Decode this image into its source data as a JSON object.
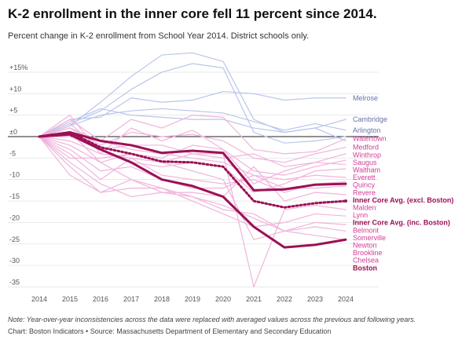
{
  "title": "K-2 enrollment in the inner core fell 11 percent since 2014.",
  "subtitle": "Percent change in K-2 enrollment from School Year 2014. District schools only.",
  "note": "Note: Year-over-year inconsistencies across the data were replaced with averaged values across the previous and following years.",
  "source": "Chart: Boston Indicators • Source: Massachusetts Department of Elementary and Secondary Education",
  "colors": {
    "blue_series": "#b9c6ea",
    "blue_label": "#6673a8",
    "pink_series": "#f0b4dc",
    "pink_label": "#d33c99",
    "highlight": "#9b1155",
    "zero_line": "#222222",
    "grid": "#e4e4e4"
  },
  "chart_data": {
    "type": "line",
    "title": "K-2 enrollment in the inner core fell 11 percent since 2014.",
    "subtitle": "Percent change in K-2 enrollment from School Year 2014. District schools only.",
    "x": [
      2014,
      2015,
      2016,
      2017,
      2018,
      2019,
      2020,
      2021,
      2022,
      2023,
      2024
    ],
    "x_tick_labels": [
      "2014",
      "2015",
      "2016",
      "2017",
      "2018",
      "2019",
      "2020",
      "2021",
      "2022",
      "2023",
      "2024"
    ],
    "ylim": [
      -35,
      17
    ],
    "y_ticks": [
      15,
      10,
      5,
      0,
      -5,
      -10,
      -15,
      -20,
      -25,
      -30,
      -35
    ],
    "y_tick_labels": [
      "+15%",
      "+10",
      "+5",
      "±0",
      "-5",
      "-10",
      "-15",
      "-20",
      "-25",
      "-30",
      "-35"
    ],
    "grid": true,
    "series": [
      {
        "name": "",
        "group": "blue",
        "values": [
          0,
          2.5,
          8,
          14,
          19,
          19.5,
          17.5,
          4,
          1,
          2,
          -1
        ]
      },
      {
        "name": "",
        "group": "blue",
        "values": [
          0,
          3,
          6,
          11,
          15,
          17,
          16,
          1,
          -1.5,
          -1,
          0
        ]
      },
      {
        "name": "Melrose",
        "group": "blue",
        "values": [
          0,
          4,
          4.5,
          9,
          8,
          8.5,
          10.5,
          10,
          8.5,
          9,
          9
        ]
      },
      {
        "name": "Cambridge",
        "group": "blue",
        "values": [
          0,
          3.5,
          6.5,
          5,
          4.5,
          4,
          4,
          2,
          1,
          2,
          4
        ]
      },
      {
        "name": "Arlington",
        "group": "blue",
        "values": [
          0,
          2.5,
          5,
          6,
          6.5,
          6,
          5.5,
          3.5,
          1.5,
          3,
          1.5
        ]
      },
      {
        "name": "Watertown",
        "group": "pink",
        "values": [
          0,
          4,
          -1,
          4,
          2,
          5,
          4.5,
          -3,
          -4,
          -3.5,
          -0.5
        ]
      },
      {
        "name": "Medford",
        "group": "pink",
        "values": [
          0,
          2,
          -2,
          1,
          0,
          0.5,
          -1,
          -5,
          -6,
          -4,
          -2.5
        ]
      },
      {
        "name": "Winthrop",
        "group": "pink",
        "values": [
          0,
          5,
          -4,
          2,
          -1,
          1.5,
          -3,
          -11,
          -8,
          -6,
          -4
        ]
      },
      {
        "name": "Saugus",
        "group": "pink",
        "values": [
          0,
          1,
          -6,
          -4,
          -5,
          -2,
          -3,
          -8,
          -9,
          -7,
          -5.5
        ]
      },
      {
        "name": "Waltham",
        "group": "pink",
        "values": [
          0,
          3,
          -3,
          -2,
          -2,
          -4,
          -5,
          -4,
          -7,
          -6,
          -6.5
        ]
      },
      {
        "name": "Everett",
        "group": "pink",
        "values": [
          0,
          0,
          -3,
          -6,
          -7,
          -6,
          -7,
          -13,
          -11,
          -8,
          -7.5
        ]
      },
      {
        "name": "Quincy",
        "group": "pink",
        "values": [
          0,
          2,
          -1,
          -3,
          -4,
          -5,
          -6,
          -9,
          -10,
          -9,
          -9.5
        ]
      },
      {
        "name": "Revere",
        "group": "pink",
        "values": [
          0,
          -1,
          -4,
          -5,
          -9,
          -10,
          -11,
          -10,
          -13,
          -11,
          -10.5
        ]
      },
      {
        "name": "Malden",
        "group": "pink",
        "values": [
          0,
          -3,
          -8,
          -7,
          -10,
          -12,
          -12,
          -9,
          -12,
          -12,
          -11.5
        ]
      },
      {
        "name": "Lynn",
        "group": "pink",
        "values": [
          0,
          -2,
          -6,
          -10,
          -13,
          -13,
          -14,
          -7,
          -15,
          -13,
          -13.5
        ]
      },
      {
        "name": "Belmont",
        "group": "pink",
        "values": [
          0,
          -5,
          -5,
          -4,
          -6,
          -4,
          -4,
          -35,
          -17,
          -16,
          -17
        ]
      },
      {
        "name": "Somerville",
        "group": "pink",
        "values": [
          0,
          -7,
          -13,
          -10,
          -12,
          -15,
          -18,
          -21,
          -20,
          -18,
          -18.5
        ]
      },
      {
        "name": "Newton",
        "group": "pink",
        "values": [
          0,
          -9,
          -13,
          -12,
          -12,
          -14,
          -17,
          -18,
          -22,
          -20,
          -20.5
        ]
      },
      {
        "name": "Brookline",
        "group": "pink",
        "values": [
          0,
          -6,
          -11,
          -14,
          -13,
          -14,
          -16,
          -19,
          -22,
          -21,
          -22
        ]
      },
      {
        "name": "Chelsea",
        "group": "pink",
        "values": [
          0,
          -4,
          -10,
          -5,
          -6,
          -8,
          -10,
          -24,
          -22,
          -23,
          -24
        ]
      },
      {
        "name": "Inner Core Avg. (excl. Boston)",
        "group": "highlight",
        "dashed": false,
        "values": [
          0,
          1,
          -1,
          -2,
          -3.8,
          -3.3,
          -3.8,
          -12.5,
          -12.3,
          -11.2,
          -11
        ]
      },
      {
        "name": "Inner Core Avg. (inc. Boston)",
        "group": "highlight",
        "dashed": true,
        "values": [
          0,
          1,
          -2.5,
          -4,
          -5.8,
          -6,
          -7,
          -15,
          -16.5,
          -15.5,
          -15
        ]
      },
      {
        "name": "Boston",
        "group": "highlight",
        "dashed": false,
        "values": [
          0,
          0.5,
          -3,
          -6,
          -10,
          -11.5,
          -14,
          -21,
          -25.8,
          -25.2,
          -24
        ]
      }
    ]
  }
}
